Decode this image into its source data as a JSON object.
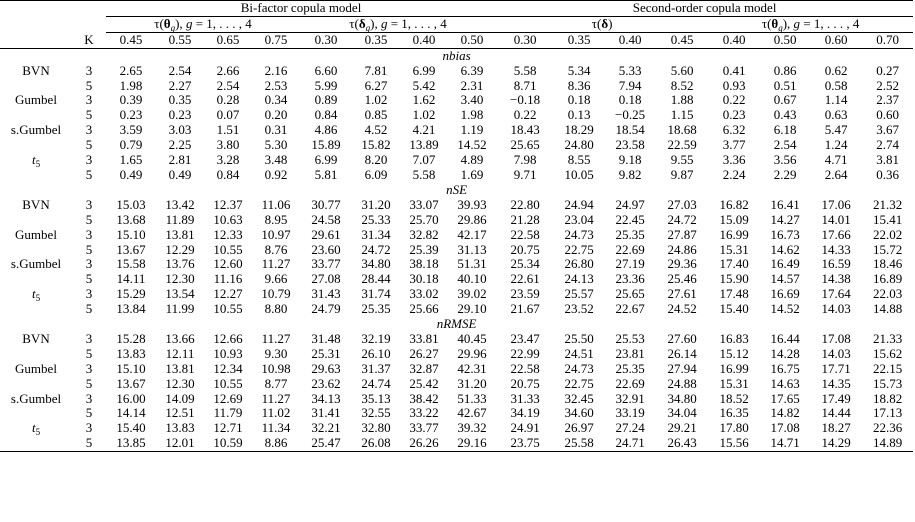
{
  "header": {
    "group1": "Bi-factor copula model",
    "group2": "Second-order copula model",
    "sub1": "τ(θ_g), g = 1, . . . , 4",
    "sub2": "τ(δ_g), g = 1, . . . , 4",
    "sub3": "τ(δ)",
    "sub4": "τ(θ_g), g = 1, . . . , 4",
    "k": "K",
    "cols": [
      "0.45",
      "0.55",
      "0.65",
      "0.75",
      "0.30",
      "0.35",
      "0.40",
      "0.50",
      "0.30",
      "0.35",
      "0.40",
      "0.45",
      "0.40",
      "0.50",
      "0.60",
      "0.70"
    ]
  },
  "sections": [
    {
      "title": "nbias",
      "groups": [
        {
          "label": "BVN",
          "rows": [
            {
              "k": "3",
              "v": [
                "2.65",
                "2.54",
                "2.66",
                "2.16",
                "6.60",
                "7.81",
                "6.99",
                "6.39",
                "5.58",
                "5.34",
                "5.33",
                "5.60",
                "0.41",
                "0.86",
                "0.62",
                "0.27"
              ]
            },
            {
              "k": "5",
              "v": [
                "1.98",
                "2.27",
                "2.54",
                "2.53",
                "5.99",
                "6.27",
                "5.42",
                "2.31",
                "8.71",
                "8.36",
                "7.94",
                "8.52",
                "0.93",
                "0.51",
                "0.58",
                "2.52"
              ]
            }
          ]
        },
        {
          "label": "Gumbel",
          "rows": [
            {
              "k": "3",
              "v": [
                "0.39",
                "0.35",
                "0.28",
                "0.34",
                "0.89",
                "1.02",
                "1.62",
                "3.40",
                "−0.18",
                "0.18",
                "0.18",
                "1.88",
                "0.22",
                "0.67",
                "1.14",
                "2.37"
              ]
            },
            {
              "k": "5",
              "v": [
                "0.23",
                "0.23",
                "0.07",
                "0.20",
                "0.84",
                "0.85",
                "1.02",
                "1.98",
                "0.22",
                "0.13",
                "−0.25",
                "1.15",
                "0.23",
                "0.43",
                "0.63",
                "0.60"
              ]
            }
          ]
        },
        {
          "label": "s.Gumbel",
          "rows": [
            {
              "k": "3",
              "v": [
                "3.59",
                "3.03",
                "1.51",
                "0.31",
                "4.86",
                "4.52",
                "4.21",
                "1.19",
                "18.43",
                "18.29",
                "18.54",
                "18.68",
                "6.32",
                "6.18",
                "5.47",
                "3.67"
              ]
            },
            {
              "k": "5",
              "v": [
                "0.79",
                "2.25",
                "3.80",
                "5.30",
                "15.89",
                "15.82",
                "13.89",
                "14.52",
                "25.65",
                "24.80",
                "23.58",
                "22.59",
                "3.77",
                "2.54",
                "1.24",
                "2.74"
              ]
            }
          ]
        },
        {
          "label": "t5",
          "rows": [
            {
              "k": "3",
              "v": [
                "1.65",
                "2.81",
                "3.28",
                "3.48",
                "6.99",
                "8.20",
                "7.07",
                "4.89",
                "7.98",
                "8.55",
                "9.18",
                "9.55",
                "3.36",
                "3.56",
                "4.71",
                "3.81"
              ]
            },
            {
              "k": "5",
              "v": [
                "0.49",
                "0.49",
                "0.84",
                "0.92",
                "5.81",
                "6.09",
                "5.58",
                "1.69",
                "9.71",
                "10.05",
                "9.82",
                "9.87",
                "2.24",
                "2.29",
                "2.64",
                "0.36"
              ]
            }
          ]
        }
      ]
    },
    {
      "title": "nSE",
      "groups": [
        {
          "label": "BVN",
          "rows": [
            {
              "k": "3",
              "v": [
                "15.03",
                "13.42",
                "12.37",
                "11.06",
                "30.77",
                "31.20",
                "33.07",
                "39.93",
                "22.80",
                "24.94",
                "24.97",
                "27.03",
                "16.82",
                "16.41",
                "17.06",
                "21.32"
              ]
            },
            {
              "k": "5",
              "v": [
                "13.68",
                "11.89",
                "10.63",
                "8.95",
                "24.58",
                "25.33",
                "25.70",
                "29.86",
                "21.28",
                "23.04",
                "22.45",
                "24.72",
                "15.09",
                "14.27",
                "14.01",
                "15.41"
              ]
            }
          ]
        },
        {
          "label": "Gumbel",
          "rows": [
            {
              "k": "3",
              "v": [
                "15.10",
                "13.81",
                "12.33",
                "10.97",
                "29.61",
                "31.34",
                "32.82",
                "42.17",
                "22.58",
                "24.73",
                "25.35",
                "27.87",
                "16.99",
                "16.73",
                "17.66",
                "22.02"
              ]
            },
            {
              "k": "5",
              "v": [
                "13.67",
                "12.29",
                "10.55",
                "8.76",
                "23.60",
                "24.72",
                "25.39",
                "31.13",
                "20.75",
                "22.75",
                "22.69",
                "24.86",
                "15.31",
                "14.62",
                "14.33",
                "15.72"
              ]
            }
          ]
        },
        {
          "label": "s.Gumbel",
          "rows": [
            {
              "k": "3",
              "v": [
                "15.58",
                "13.76",
                "12.60",
                "11.27",
                "33.77",
                "34.80",
                "38.18",
                "51.31",
                "25.34",
                "26.80",
                "27.19",
                "29.36",
                "17.40",
                "16.49",
                "16.59",
                "18.46"
              ]
            },
            {
              "k": "5",
              "v": [
                "14.11",
                "12.30",
                "11.16",
                "9.66",
                "27.08",
                "28.44",
                "30.18",
                "40.10",
                "22.61",
                "24.13",
                "23.36",
                "25.46",
                "15.90",
                "14.57",
                "14.38",
                "16.89"
              ]
            }
          ]
        },
        {
          "label": "t5",
          "rows": [
            {
              "k": "3",
              "v": [
                "15.29",
                "13.54",
                "12.27",
                "10.79",
                "31.43",
                "31.74",
                "33.02",
                "39.02",
                "23.59",
                "25.57",
                "25.65",
                "27.61",
                "17.48",
                "16.69",
                "17.64",
                "22.03"
              ]
            },
            {
              "k": "5",
              "v": [
                "13.84",
                "11.99",
                "10.55",
                "8.80",
                "24.79",
                "25.35",
                "25.66",
                "29.10",
                "21.67",
                "23.52",
                "22.67",
                "24.52",
                "15.40",
                "14.52",
                "14.03",
                "14.88"
              ]
            }
          ]
        }
      ]
    },
    {
      "title": "nRMSE",
      "groups": [
        {
          "label": "BVN",
          "rows": [
            {
              "k": "3",
              "v": [
                "15.28",
                "13.66",
                "12.66",
                "11.27",
                "31.48",
                "32.19",
                "33.81",
                "40.45",
                "23.47",
                "25.50",
                "25.53",
                "27.60",
                "16.83",
                "16.44",
                "17.08",
                "21.33"
              ]
            },
            {
              "k": "5",
              "v": [
                "13.83",
                "12.11",
                "10.93",
                "9.30",
                "25.31",
                "26.10",
                "26.27",
                "29.96",
                "22.99",
                "24.51",
                "23.81",
                "26.14",
                "15.12",
                "14.28",
                "14.03",
                "15.62"
              ]
            }
          ]
        },
        {
          "label": "Gumbel",
          "rows": [
            {
              "k": "3",
              "v": [
                "15.10",
                "13.81",
                "12.34",
                "10.98",
                "29.63",
                "31.37",
                "32.87",
                "42.31",
                "22.58",
                "24.73",
                "25.35",
                "27.94",
                "16.99",
                "16.75",
                "17.71",
                "22.15"
              ]
            },
            {
              "k": "5",
              "v": [
                "13.67",
                "12.30",
                "10.55",
                "8.77",
                "23.62",
                "24.74",
                "25.42",
                "31.20",
                "20.75",
                "22.75",
                "22.69",
                "24.88",
                "15.31",
                "14.63",
                "14.35",
                "15.73"
              ]
            }
          ]
        },
        {
          "label": "s.Gumbel",
          "rows": [
            {
              "k": "3",
              "v": [
                "16.00",
                "14.09",
                "12.69",
                "11.27",
                "34.13",
                "35.13",
                "38.42",
                "51.33",
                "31.33",
                "32.45",
                "32.91",
                "34.80",
                "18.52",
                "17.65",
                "17.49",
                "18.82"
              ]
            },
            {
              "k": "5",
              "v": [
                "14.14",
                "12.51",
                "11.79",
                "11.02",
                "31.41",
                "32.55",
                "33.22",
                "42.67",
                "34.19",
                "34.60",
                "33.19",
                "34.04",
                "16.35",
                "14.82",
                "14.44",
                "17.13"
              ]
            }
          ]
        },
        {
          "label": "t5",
          "rows": [
            {
              "k": "3",
              "v": [
                "15.40",
                "13.83",
                "12.71",
                "11.34",
                "32.21",
                "32.80",
                "33.77",
                "39.32",
                "24.91",
                "26.97",
                "27.24",
                "29.21",
                "17.80",
                "17.08",
                "18.27",
                "22.36"
              ]
            },
            {
              "k": "5",
              "v": [
                "13.85",
                "12.01",
                "10.59",
                "8.86",
                "25.47",
                "26.08",
                "26.26",
                "29.16",
                "23.75",
                "25.58",
                "24.71",
                "26.43",
                "15.56",
                "14.71",
                "14.29",
                "14.89"
              ]
            }
          ]
        }
      ]
    }
  ]
}
